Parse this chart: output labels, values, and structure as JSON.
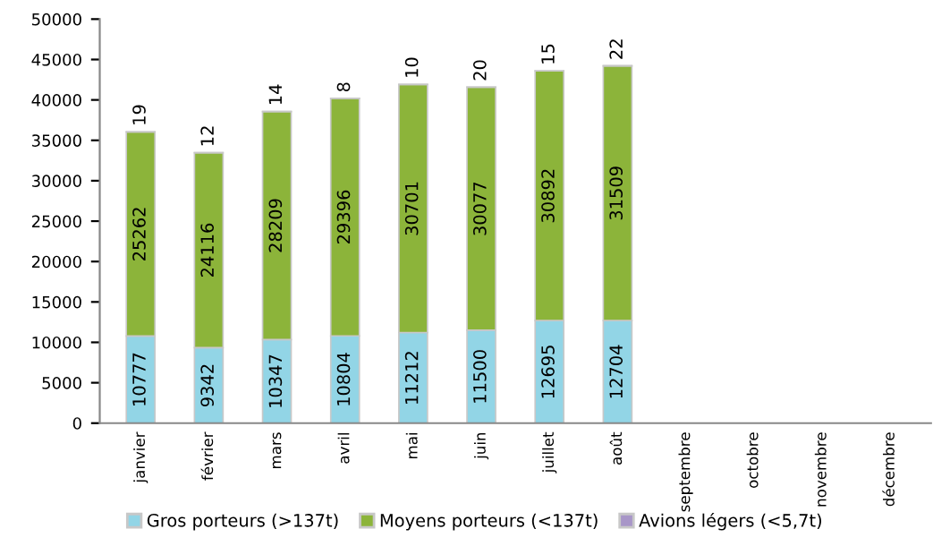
{
  "chart_data": {
    "type": "bar",
    "stacked": true,
    "data_labels": true,
    "grid": false,
    "legend": "bottom",
    "categories": [
      "janvier",
      "février",
      "mars",
      "avril",
      "mai",
      "juin",
      "juillet",
      "août",
      "septembre",
      "octobre",
      "novembre",
      "décembre"
    ],
    "series": [
      {
        "name": "Gros porteurs (>137t)",
        "color": "#92d5e6",
        "values": [
          10777,
          9342,
          10347,
          10804,
          11212,
          11500,
          12695,
          12704,
          null,
          null,
          null,
          null
        ]
      },
      {
        "name": "Moyens porteurs (<137t)",
        "color": "#8cb43a",
        "values": [
          25262,
          24116,
          28209,
          29396,
          30701,
          30077,
          30892,
          31509,
          null,
          null,
          null,
          null
        ]
      },
      {
        "name": "Avions légers (<5,7t)",
        "color": "#a896c8",
        "values": [
          19,
          12,
          14,
          8,
          10,
          20,
          15,
          22,
          null,
          null,
          null,
          null
        ]
      }
    ],
    "ylim": [
      0,
      50000
    ],
    "yticks": [
      0,
      5000,
      10000,
      15000,
      20000,
      25000,
      30000,
      35000,
      40000,
      45000,
      50000
    ]
  }
}
